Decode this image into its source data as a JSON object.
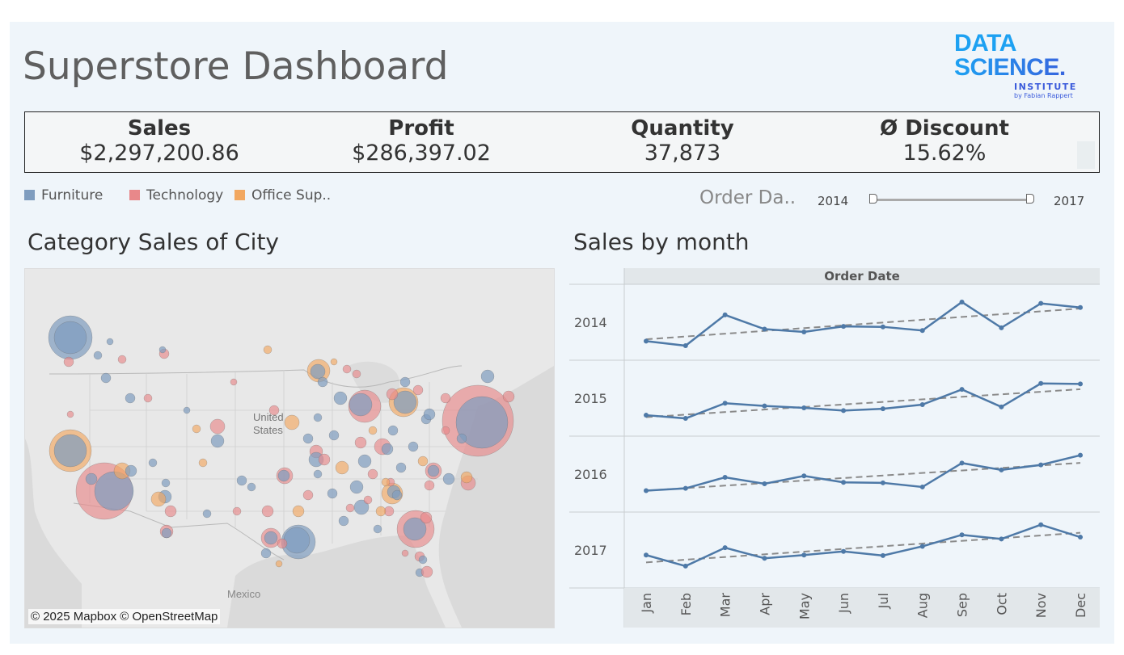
{
  "dashboard": {
    "title": "Superstore Dashboard"
  },
  "logo": {
    "line1": "DATA",
    "line2": "SCIENCE.",
    "line3": "INSTITUTE",
    "line4": "by Fabian Rappert"
  },
  "kpis": [
    {
      "label": "Sales",
      "value": "$2,297,200.86"
    },
    {
      "label": "Profit",
      "value": "$286,397.02"
    },
    {
      "label": "Quantity",
      "value": "37,873"
    },
    {
      "label": "Ø Discount",
      "value": "15.62%"
    }
  ],
  "legend": [
    {
      "label": "Furniture",
      "color": "#7f9dbf"
    },
    {
      "label": "Technology",
      "color": "#e8888a"
    },
    {
      "label": "Office Sup..",
      "color": "#f2a861"
    }
  ],
  "order_date_filter": {
    "label": "Order Da..",
    "start": "2014",
    "end": "2017"
  },
  "map": {
    "title": "Category Sales of City",
    "country_label_1": "United",
    "country_label_2": "States",
    "mexico_label": "Mexico",
    "credit": "© 2025 Mapbox © OpenStreetMap",
    "colors": {
      "land": "#e8e8e8",
      "water": "#d7d7d7",
      "border": "#b8b8b8"
    }
  },
  "line_chart": {
    "title": "Sales by month",
    "header": "Order Date"
  },
  "chart_data": {
    "type": "line",
    "x": [
      "Jan",
      "Feb",
      "Mar",
      "Apr",
      "May",
      "Jun",
      "Jul",
      "Aug",
      "Sep",
      "Oct",
      "Nov",
      "Dec"
    ],
    "xlabel": "",
    "color": "#4e79a7",
    "trend_color": "#8a8a8a",
    "trend_lines": true,
    "grid": false,
    "series": [
      {
        "name": "2014",
        "values": [
          14,
          4,
          71,
          40,
          34,
          46,
          45,
          37,
          99,
          43,
          96,
          87
        ]
      },
      {
        "name": "2015",
        "values": [
          18,
          11,
          44,
          38,
          34,
          28,
          32,
          41,
          74,
          36,
          87,
          86
        ]
      },
      {
        "name": "2016",
        "values": [
          19,
          24,
          48,
          34,
          51,
          37,
          36,
          27,
          79,
          64,
          75,
          96
        ]
      },
      {
        "name": "2017",
        "values": [
          44,
          20,
          60,
          37,
          44,
          52,
          43,
          63,
          88,
          79,
          110,
          83
        ]
      }
    ]
  }
}
